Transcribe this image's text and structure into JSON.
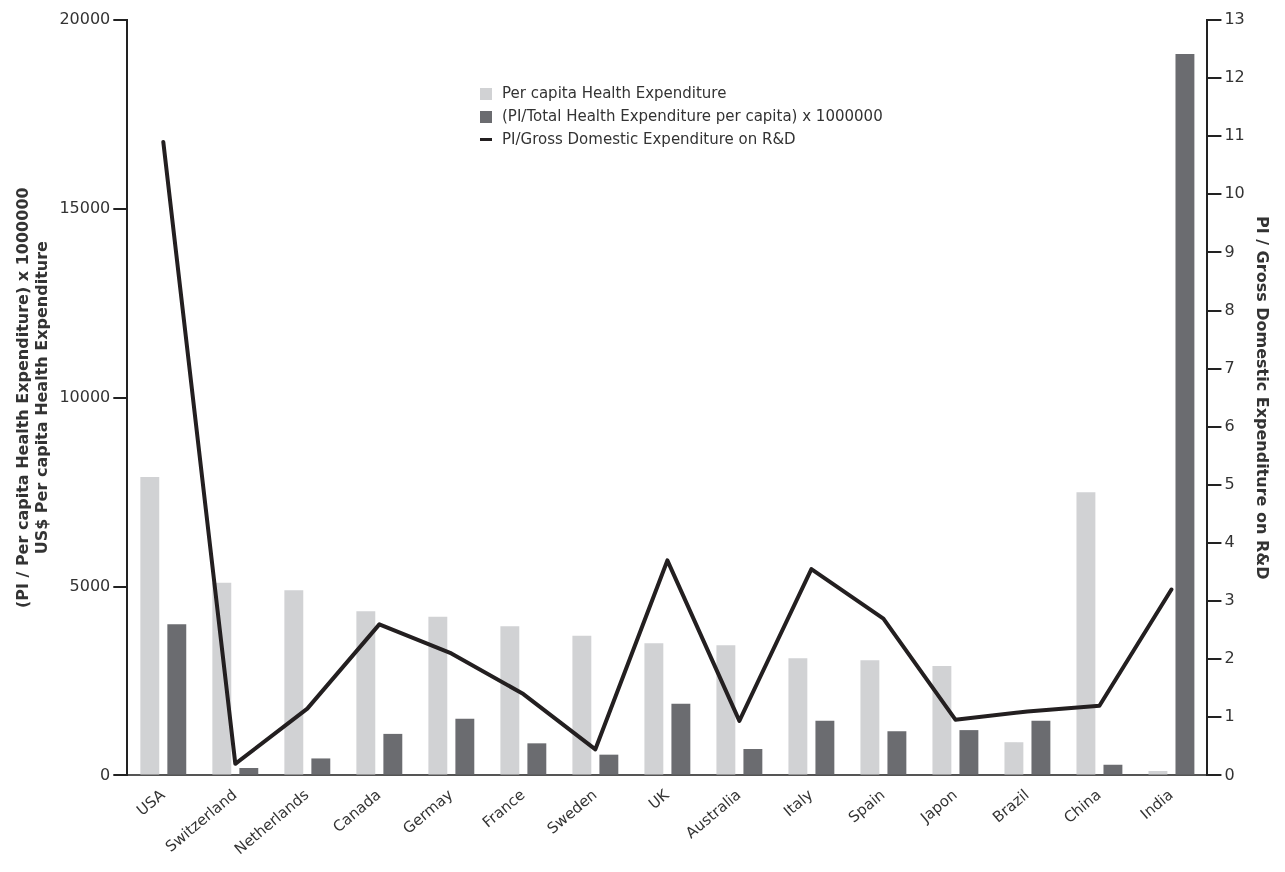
{
  "chart_data": {
    "type": "bar",
    "ylabel": "(PI / Per capita Health Expenditure) x 1000000\nUS$ Per capita Health Expenditure",
    "y2label": "PI / Gross Domestic Expenditure on R&D",
    "categories": [
      "USA",
      "Switzerland",
      "Netherlands",
      "Canada",
      "Germay",
      "France",
      "Sweden",
      "UK",
      "Australia",
      "Italy",
      "Spain",
      "Japon",
      "Brazil",
      "China",
      "India"
    ],
    "series": [
      {
        "name": "Per capita Health Expenditure",
        "color": "#d1d2d4",
        "values": [
          7900,
          5100,
          4900,
          4350,
          4200,
          3950,
          3700,
          3500,
          3450,
          3100,
          3050,
          2900,
          880,
          7500,
          120
        ]
      },
      {
        "name": "(PI/Total Health Expenditure per capita) x 1000000",
        "color": "#6b6c70",
        "values": [
          4000,
          200,
          450,
          1100,
          1500,
          850,
          550,
          1900,
          700,
          1450,
          1170,
          1200,
          1450,
          280,
          19100
        ]
      },
      {
        "name": "PI/Gross Domestic Expenditure on R&D",
        "type": "line",
        "axis": "y2",
        "color": "#231f20",
        "values": [
          10.9,
          0.2,
          1.15,
          2.6,
          2.1,
          1.4,
          0.45,
          3.7,
          0.94,
          3.55,
          2.7,
          0.96,
          1.1,
          1.2,
          3.2
        ]
      }
    ],
    "ylim": [
      0,
      20000
    ],
    "yticks": [
      0,
      5000,
      10000,
      15000,
      20000
    ],
    "y2lim": [
      0,
      13
    ],
    "y2ticks": [
      0,
      1,
      2,
      3,
      4,
      5,
      6,
      7,
      8,
      9,
      10,
      11,
      12,
      13
    ],
    "grid": false,
    "legend": "top"
  }
}
